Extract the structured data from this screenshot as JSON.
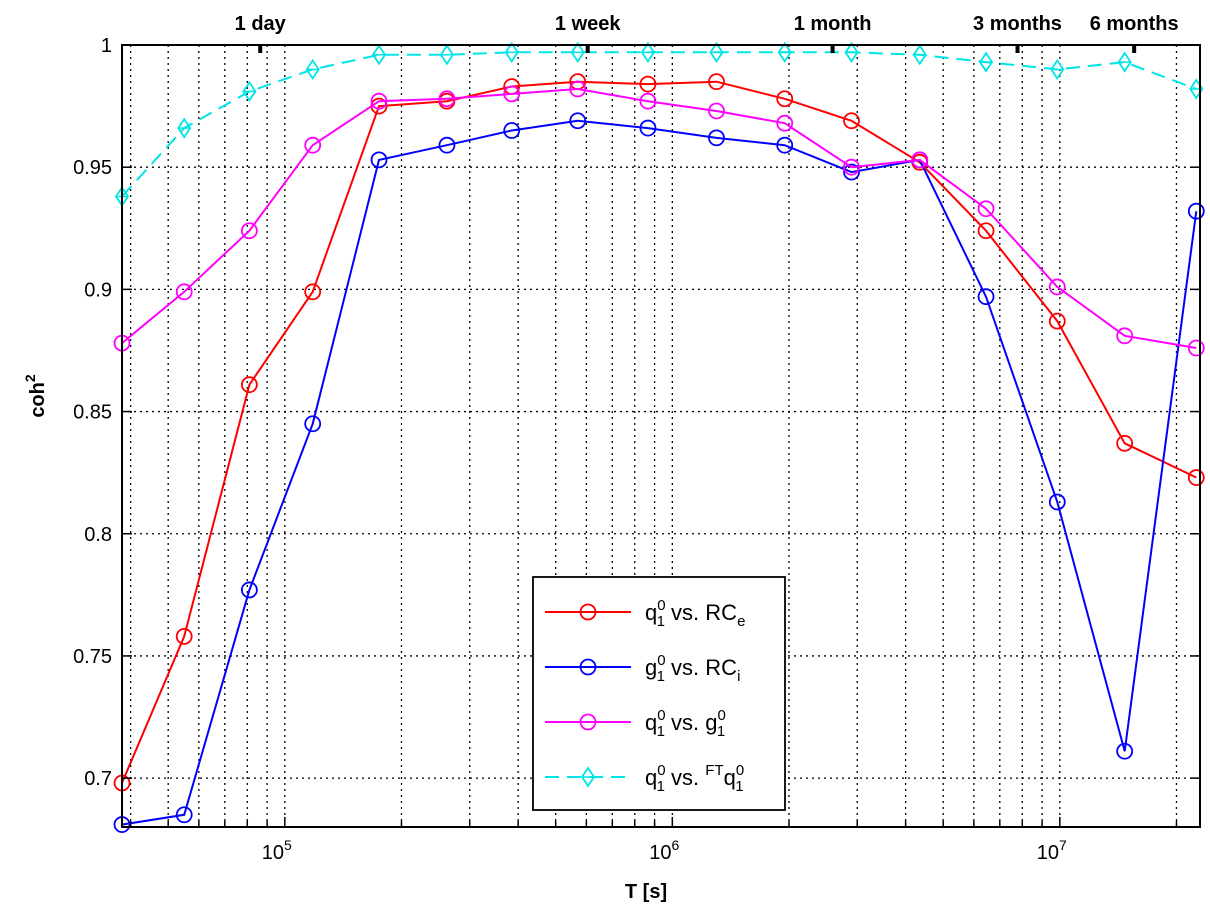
{
  "chart_data": {
    "type": "line",
    "xscale": "log",
    "xlim": [
      38000,
      23000000
    ],
    "ylim": [
      0.68,
      1.0
    ],
    "xlabel": "T [s]",
    "ylabel": "coh",
    "ylabel_sup": "2",
    "grid": true,
    "legend_position": "bottom-center",
    "x_ticks": [
      {
        "value": 100000,
        "base": "10",
        "exp": "5"
      },
      {
        "value": 1000000,
        "base": "10",
        "exp": "6"
      },
      {
        "value": 10000000,
        "base": "10",
        "exp": "7"
      }
    ],
    "y_ticks": [
      "0.7",
      "0.75",
      "0.8",
      "0.85",
      "0.9",
      "0.95",
      "1"
    ],
    "top_ticks": [
      {
        "value": 86400,
        "label": "1 day"
      },
      {
        "value": 604800,
        "label": "1 week"
      },
      {
        "value": 2592000,
        "label": "1 month"
      },
      {
        "value": 7776000,
        "label": "3 months"
      },
      {
        "value": 15552000,
        "label": "6 months"
      }
    ],
    "x": [
      38000,
      55000,
      81000,
      118000,
      175000,
      262000,
      385000,
      570000,
      865000,
      1300000,
      1950000,
      2900000,
      4350000,
      6450000,
      9850000,
      14700000,
      22500000
    ],
    "series": [
      {
        "name_parts": [
          "q",
          "1",
          "0",
          " vs. RC",
          "e",
          ""
        ],
        "color": "#ff0000",
        "dash": "",
        "marker": "circle",
        "values": [
          0.698,
          0.758,
          0.861,
          0.899,
          0.975,
          0.977,
          0.983,
          0.985,
          0.984,
          0.985,
          0.978,
          0.969,
          0.952,
          0.924,
          0.887,
          0.837,
          0.823
        ]
      },
      {
        "name_parts": [
          "g",
          "1",
          "0",
          " vs. RC",
          "i",
          ""
        ],
        "color": "#0000ff",
        "dash": "",
        "marker": "circle",
        "values": [
          0.681,
          0.685,
          0.777,
          0.845,
          0.953,
          0.959,
          0.965,
          0.969,
          0.966,
          0.962,
          0.959,
          0.948,
          0.953,
          0.897,
          0.813,
          0.711,
          0.932
        ]
      },
      {
        "name_parts": [
          "q",
          "1",
          "0",
          " vs. g",
          "1",
          "0"
        ],
        "color": "#ff00ff",
        "dash": "",
        "marker": "circle",
        "values": [
          0.878,
          0.899,
          0.924,
          0.959,
          0.977,
          0.978,
          0.98,
          0.982,
          0.977,
          0.973,
          0.968,
          0.95,
          0.953,
          0.933,
          0.901,
          0.881,
          0.876
        ]
      },
      {
        "name_parts": [
          "q",
          "1",
          "0",
          " vs. ",
          "",
          "0"
        ],
        "name_prefix_sup": "FT",
        "name_tail_sym": "q",
        "name_tail_sub": "1",
        "color": "#00e5e5",
        "dash": "14,8",
        "marker": "diamond",
        "values": [
          0.938,
          0.966,
          0.981,
          0.99,
          0.996,
          0.996,
          0.997,
          0.997,
          0.997,
          0.997,
          0.997,
          0.997,
          0.996,
          0.993,
          0.99,
          0.993,
          0.982
        ]
      }
    ]
  }
}
